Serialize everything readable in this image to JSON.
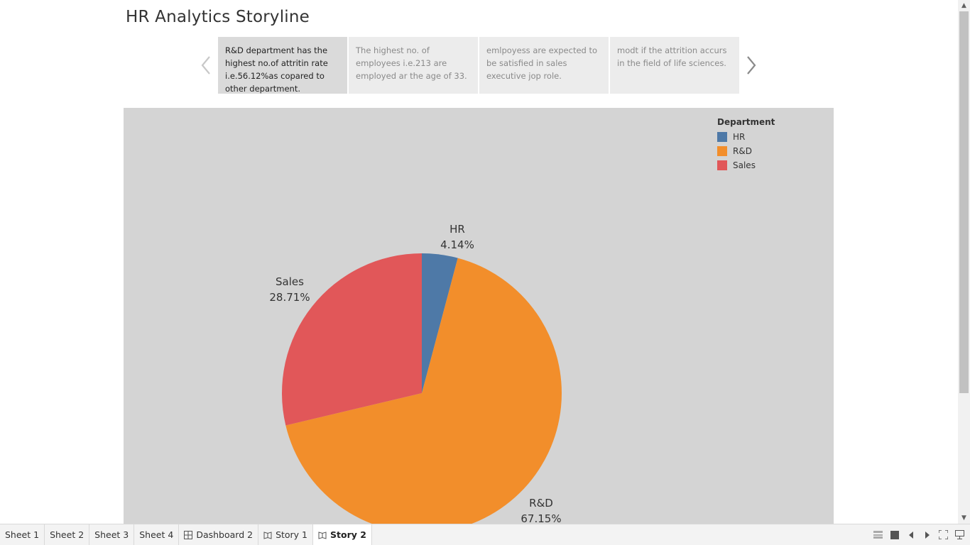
{
  "story": {
    "title": "HR Analytics Storyline",
    "points": [
      {
        "text": "R&D department has the highest no.of attritin rate i.e.56.12%as copared to other department."
      },
      {
        "text": "The highest no. of employees i.e.213 are employed ar the age of 33."
      },
      {
        "text": "emlpoyess are expected to be satisfied in sales executive jop role."
      },
      {
        "text": "modt if the attrition accurs in the field of life sciences."
      }
    ]
  },
  "chart_data": {
    "type": "pie",
    "title": "",
    "legend": {
      "title": "Department",
      "placement": "top-right"
    },
    "slices": [
      {
        "label": "HR",
        "value": 4.14,
        "display": "4.14%",
        "color": "#4e79a7"
      },
      {
        "label": "R&D",
        "value": 67.15,
        "display": "67.15%",
        "color": "#f28e2b"
      },
      {
        "label": "Sales",
        "value": 28.71,
        "display": "28.71%",
        "color": "#e15759"
      }
    ]
  },
  "tabs": [
    {
      "label": "Sheet 1",
      "icon": ""
    },
    {
      "label": "Sheet 2",
      "icon": ""
    },
    {
      "label": "Sheet 3",
      "icon": ""
    },
    {
      "label": "Sheet 4",
      "icon": ""
    },
    {
      "label": "Dashboard 2",
      "icon": "dashboard-icon"
    },
    {
      "label": "Story 1",
      "icon": "story-icon"
    },
    {
      "label": "Story 2",
      "icon": "story-icon",
      "active": true
    }
  ]
}
